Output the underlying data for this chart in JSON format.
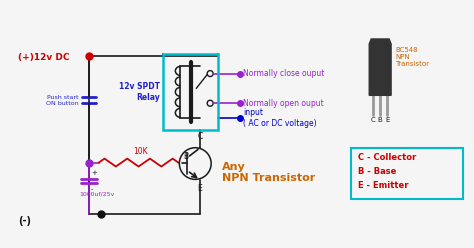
{
  "bg_color": "#f5f5f5",
  "circuit_color": "#1a1a1a",
  "plus_label": "(+)12v DC",
  "plus_color": "#cc0000",
  "minus_label": "(-)",
  "minus_color": "#111111",
  "relay_label": "12v SPDT\nRelay",
  "relay_color": "#2222cc",
  "relay_box_color": "#00bbcc",
  "nc_label": "Normally close ouput",
  "no_label": "Normally open ouput",
  "input_label": "input\n( AC or DC voltage)",
  "output_color": "#9922cc",
  "input_color": "#0000cc",
  "transistor_label": "Any\nNPN Transistor",
  "transistor_color": "#cc6600",
  "resistor_label": "10K",
  "resistor_color": "#cc0000",
  "cap_label": "1000uf/25v",
  "cap_color": "#9922cc",
  "button_label": "Push start\nON button",
  "button_color": "#2222cc",
  "bc548_label": "BC548\nNPN\nTransistor",
  "bc548_color": "#cc6600",
  "legend_color": "#cc0000",
  "legend_box_color": "#00bbcc",
  "c_label": "C - Collector",
  "b_label": "B - Base",
  "e_label": "E - Emitter",
  "node_red": "#cc0000",
  "node_purple": "#9922cc",
  "node_blue": "#0000cc",
  "node_black": "#111111"
}
